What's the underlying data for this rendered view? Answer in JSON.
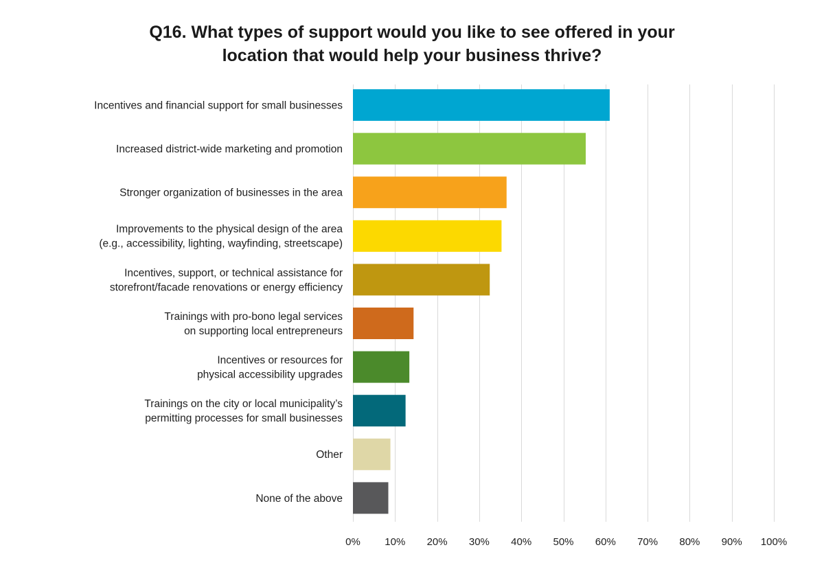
{
  "chart_data": {
    "type": "bar",
    "orientation": "horizontal",
    "title_lines": [
      "Q16. What types of support would you like to see offered in your",
      "location that would help your business thrive?"
    ],
    "categories": [
      [
        "Incentives and financial support for small businesses"
      ],
      [
        "Increased district-wide marketing and promotion"
      ],
      [
        "Stronger organization of businesses in the area"
      ],
      [
        "Improvements to the physical design of the area",
        "(e.g., accessibility, lighting, wayfinding, streetscape)"
      ],
      [
        "Incentives, support, or technical assistance for",
        "storefront/facade renovations or energy efficiency"
      ],
      [
        "Trainings with pro-bono legal services",
        "on supporting local entrepreneurs"
      ],
      [
        "Incentives or resources for",
        "physical accessibility upgrades"
      ],
      [
        "Trainings on the city or local municipality’s",
        "permitting processes for small businesses"
      ],
      [
        "Other"
      ],
      [
        "None of the above"
      ]
    ],
    "values": [
      61,
      55.3,
      36.5,
      35.3,
      32.5,
      14.4,
      13.4,
      12.5,
      8.9,
      8.4
    ],
    "colors": [
      "#00a6d1",
      "#8dc63f",
      "#f7a21b",
      "#fcd900",
      "#bf9710",
      "#cf6a1c",
      "#4b8a2b",
      "#03697a",
      "#dfd7a7",
      "#58585a"
    ],
    "xlim": [
      0,
      100
    ],
    "x_ticks": [
      0,
      10,
      20,
      30,
      40,
      50,
      60,
      70,
      80,
      90,
      100
    ],
    "x_tick_labels": [
      "0%",
      "10%",
      "20%",
      "30%",
      "40%",
      "50%",
      "60%",
      "70%",
      "80%",
      "90%",
      "100%"
    ],
    "grid": true,
    "legend": "none"
  }
}
